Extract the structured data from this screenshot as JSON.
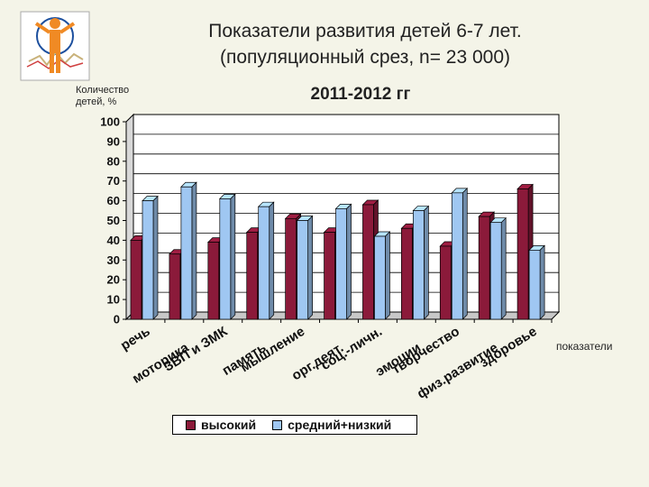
{
  "slide": {
    "title_line1": "Показатели развития детей 6-7 лет.",
    "title_line2": "(популяционный срез, n= 23 000)",
    "period": "2011-2012 гг"
  },
  "colors": {
    "series1": "#8b1a3a",
    "series2": "#9fc7f2",
    "plot_bg": "#ffffff",
    "grid": "#000000"
  },
  "chart_data": {
    "type": "bar",
    "ylabel_line1": "Количество",
    "ylabel_line2": "детей, %",
    "xlabel": "показатели",
    "ylim": [
      0,
      100
    ],
    "yticks": [
      0,
      10,
      20,
      30,
      40,
      50,
      60,
      70,
      80,
      90,
      100
    ],
    "grid": true,
    "legend_position": "bottom",
    "categories": [
      "речь",
      "моторика",
      "ЗВП и ЗМК",
      "память",
      "мышление",
      "орг.деят.",
      "соц.-личн.",
      "эмоции",
      "творчество",
      "физ.развитие",
      "здоровье"
    ],
    "series": [
      {
        "name": "высокий",
        "values": [
          40,
          33,
          39,
          44,
          51,
          44,
          58,
          46,
          37,
          52,
          66
        ]
      },
      {
        "name": "средний+низкий",
        "values": [
          60,
          67,
          61,
          57,
          50,
          56,
          42,
          55,
          64,
          49,
          35
        ]
      }
    ]
  }
}
